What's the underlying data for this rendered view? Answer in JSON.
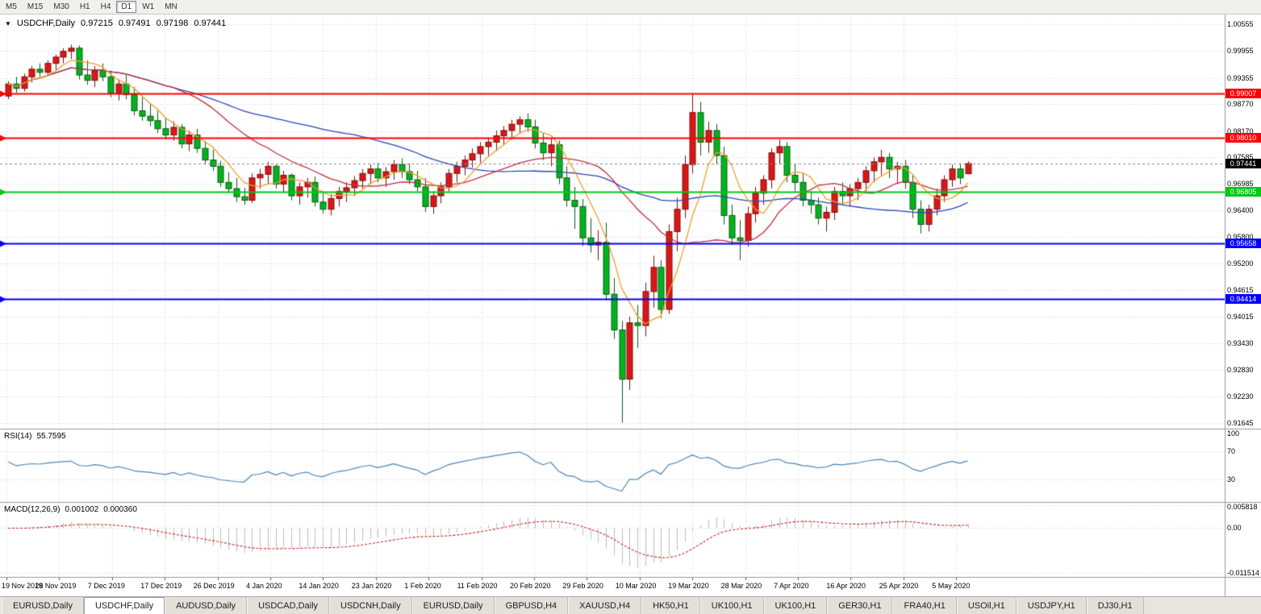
{
  "toolbar": {
    "buttons": [
      "M5",
      "M15",
      "M30",
      "H1",
      "H4",
      "D1",
      "W1",
      "MN"
    ],
    "active_index": 5
  },
  "icons": {
    "symbol_dropdown": "▼"
  },
  "chart": {
    "symbol_header": "USDCHF,Daily",
    "ohlc": {
      "open": "0.97215",
      "high": "0.97491",
      "low": "0.97198",
      "close": "0.97441"
    },
    "price_axis_labels": [
      "1.00555",
      "0.99955",
      "0.99355",
      "0.98770",
      "0.98170",
      "0.97585",
      "0.96985",
      "0.96400",
      "0.95800",
      "0.95200",
      "0.94615",
      "0.94015",
      "0.93430",
      "0.92830",
      "0.92230",
      "0.91645"
    ],
    "time_axis_labels": [
      "19 Nov 2019",
      "28 Nov 2019",
      "7 Dec 2019",
      "17 Dec 2019",
      "26 Dec 2019",
      "4 Jan 2020",
      "14 Jan 2020",
      "23 Jan 2020",
      "1 Feb 2020",
      "11 Feb 2020",
      "20 Feb 2020",
      "29 Feb 2020",
      "10 Mar 2020",
      "19 Mar 2020",
      "28 Mar 2020",
      "7 Apr 2020",
      "16 Apr 2020",
      "25 Apr 2020",
      "5 May 2020"
    ],
    "hlines": [
      {
        "label": "0.99007",
        "price": 0.99007,
        "color": "#ff0000",
        "width": 2
      },
      {
        "label": "0.98010",
        "price": 0.9801,
        "color": "#ff0000",
        "width": 2
      },
      {
        "label": "0.96805",
        "price": 0.96805,
        "color": "#00c814",
        "width": 2
      },
      {
        "label": "0.95658",
        "price": 0.95658,
        "color": "#0000ff",
        "width": 2
      },
      {
        "label": "0.94414",
        "price": 0.94414,
        "color": "#0000ff",
        "width": 2
      }
    ],
    "current_price": {
      "label": "0.97441",
      "price": 0.97441
    },
    "colors": {
      "bull": "#dc1616",
      "bear": "#00b41e",
      "bull_wick": "#7a1010",
      "bear_wick": "#0e5c14",
      "grid": "#d6d6d6",
      "ma_fast": "#f0a028",
      "ma_mid": "#c23040",
      "ma_slow": "#2846b4",
      "rsi_line": "#4a86b8",
      "macd_hist": "#bdbdbd",
      "macd_signal": "#cc2222",
      "current_badge": "#000000"
    }
  },
  "rsi": {
    "label": "RSI(14)",
    "value": "55.7595",
    "axis_labels": [
      {
        "label": "100",
        "v": 100
      },
      {
        "label": "70",
        "v": 70
      },
      {
        "label": "30",
        "v": 30
      }
    ]
  },
  "macd": {
    "label": "MACD(12,26,9)",
    "value_main": "0.001002",
    "value_signal": "0.000360",
    "axis_labels": [
      {
        "label": "0.005818",
        "v": 0.005818
      },
      {
        "label": "0.00",
        "v": 0
      },
      {
        "label": "-0.011514",
        "v": -0.011514
      }
    ]
  },
  "tabs": {
    "active_index": 1,
    "items": [
      "EURUSD,Daily",
      "USDCHF,Daily",
      "AUDUSD,Daily",
      "USDCAD,Daily",
      "USDCNH,Daily",
      "EURUSD,Daily",
      "GBPUSD,H4",
      "XAUUSD,H4",
      "HK50,H1",
      "UK100,H1",
      "UK100,H1",
      "GER30,H1",
      "FRA40,H1",
      "USOil,H1",
      "USDJPY,H1",
      "DJ30,H1"
    ]
  },
  "chart_data": {
    "type": "candlestick",
    "symbol": "USDCHF",
    "timeframe": "Daily",
    "x_labels": [
      "19 Nov 2019",
      "28 Nov 2019",
      "7 Dec 2019",
      "17 Dec 2019",
      "26 Dec 2019",
      "4 Jan 2020",
      "14 Jan 2020",
      "23 Jan 2020",
      "1 Feb 2020",
      "11 Feb 2020",
      "20 Feb 2020",
      "29 Feb 2020",
      "10 Mar 2020",
      "19 Mar 2020",
      "28 Mar 2020",
      "7 Apr 2020",
      "16 Apr 2020",
      "25 Apr 2020",
      "5 May 2020"
    ],
    "y_range": [
      0.9155,
      1.0077
    ],
    "note_colors": "red candles = bullish, green candles = bearish",
    "indicators": [
      {
        "name": "RSI",
        "params": "14",
        "displayed_value": 55.7595,
        "levels": [
          100,
          70,
          30
        ]
      },
      {
        "name": "MACD",
        "params": "12,26,9",
        "displayed_values": [
          0.001002,
          0.00036
        ],
        "scale": [
          0.005818,
          0.0,
          -0.011514
        ]
      }
    ],
    "candles": [
      [
        0.9895,
        0.9928,
        0.9888,
        0.9922
      ],
      [
        0.9922,
        0.9938,
        0.9902,
        0.9912
      ],
      [
        0.9912,
        0.9945,
        0.9905,
        0.9938
      ],
      [
        0.9938,
        0.9962,
        0.9925,
        0.9955
      ],
      [
        0.9955,
        0.9968,
        0.9938,
        0.9948
      ],
      [
        0.9948,
        0.9975,
        0.994,
        0.9968
      ],
      [
        0.9968,
        0.9988,
        0.9952,
        0.9982
      ],
      [
        0.9982,
        1.0002,
        0.9968,
        0.9995
      ],
      [
        0.9995,
        1.001,
        0.9978,
        1.0002
      ],
      [
        1.0002,
        1.0008,
        0.9932,
        0.9942
      ],
      [
        0.9942,
        0.9975,
        0.992,
        0.993
      ],
      [
        0.993,
        0.9962,
        0.9915,
        0.9952
      ],
      [
        0.9952,
        0.9968,
        0.9928,
        0.9938
      ],
      [
        0.9938,
        0.9952,
        0.9892,
        0.9902
      ],
      [
        0.9902,
        0.9932,
        0.9885,
        0.9922
      ],
      [
        0.9922,
        0.9942,
        0.9888,
        0.9898
      ],
      [
        0.9898,
        0.9915,
        0.9852,
        0.9862
      ],
      [
        0.9862,
        0.9892,
        0.984,
        0.985
      ],
      [
        0.985,
        0.9878,
        0.9828,
        0.984
      ],
      [
        0.984,
        0.9862,
        0.9812,
        0.9822
      ],
      [
        0.9822,
        0.9845,
        0.9798,
        0.9808
      ],
      [
        0.9808,
        0.9838,
        0.9795,
        0.9825
      ],
      [
        0.9825,
        0.9832,
        0.9778,
        0.9788
      ],
      [
        0.9788,
        0.9818,
        0.9772,
        0.9808
      ],
      [
        0.9808,
        0.9822,
        0.9768,
        0.9778
      ],
      [
        0.9778,
        0.9795,
        0.9742,
        0.9752
      ],
      [
        0.9752,
        0.9775,
        0.9728,
        0.9738
      ],
      [
        0.9738,
        0.975,
        0.9692,
        0.9702
      ],
      [
        0.9702,
        0.9725,
        0.9678,
        0.9688
      ],
      [
        0.9688,
        0.9712,
        0.9658,
        0.967
      ],
      [
        0.967,
        0.969,
        0.9652,
        0.9662
      ],
      [
        0.9662,
        0.9722,
        0.9656,
        0.9712
      ],
      [
        0.9712,
        0.9732,
        0.9688,
        0.972
      ],
      [
        0.972,
        0.9748,
        0.9698,
        0.9738
      ],
      [
        0.9738,
        0.9742,
        0.9688,
        0.9698
      ],
      [
        0.9698,
        0.9728,
        0.9678,
        0.9718
      ],
      [
        0.9718,
        0.9722,
        0.9662,
        0.9672
      ],
      [
        0.9672,
        0.9702,
        0.9652,
        0.9692
      ],
      [
        0.9692,
        0.9712,
        0.9668,
        0.9702
      ],
      [
        0.9702,
        0.9715,
        0.9648,
        0.9658
      ],
      [
        0.9658,
        0.9682,
        0.9632,
        0.9642
      ],
      [
        0.9642,
        0.9676,
        0.9628,
        0.9666
      ],
      [
        0.9666,
        0.9692,
        0.9648,
        0.9682
      ],
      [
        0.9682,
        0.9702,
        0.9658,
        0.969
      ],
      [
        0.969,
        0.9716,
        0.9672,
        0.9706
      ],
      [
        0.9706,
        0.9732,
        0.9688,
        0.9722
      ],
      [
        0.9722,
        0.9742,
        0.9698,
        0.9732
      ],
      [
        0.9732,
        0.9746,
        0.9702,
        0.9712
      ],
      [
        0.9712,
        0.9736,
        0.9692,
        0.9726
      ],
      [
        0.9726,
        0.9752,
        0.9708,
        0.9742
      ],
      [
        0.9742,
        0.9756,
        0.9712,
        0.9726
      ],
      [
        0.9726,
        0.9744,
        0.9698,
        0.9708
      ],
      [
        0.9708,
        0.9728,
        0.9682,
        0.9692
      ],
      [
        0.9692,
        0.9712,
        0.9636,
        0.9648
      ],
      [
        0.9648,
        0.9682,
        0.9632,
        0.9672
      ],
      [
        0.9672,
        0.9702,
        0.9655,
        0.9692
      ],
      [
        0.9692,
        0.9732,
        0.9682,
        0.9722
      ],
      [
        0.9722,
        0.9748,
        0.9702,
        0.9738
      ],
      [
        0.9738,
        0.9762,
        0.9718,
        0.9752
      ],
      [
        0.9752,
        0.9778,
        0.9735,
        0.9766
      ],
      [
        0.9766,
        0.9792,
        0.9746,
        0.9782
      ],
      [
        0.9782,
        0.9802,
        0.9762,
        0.9792
      ],
      [
        0.9792,
        0.9818,
        0.9772,
        0.9806
      ],
      [
        0.9806,
        0.9828,
        0.9786,
        0.9818
      ],
      [
        0.9818,
        0.9842,
        0.9798,
        0.9832
      ],
      [
        0.9832,
        0.985,
        0.9812,
        0.9842
      ],
      [
        0.9842,
        0.9856,
        0.9815,
        0.9826
      ],
      [
        0.9826,
        0.9842,
        0.9778,
        0.979
      ],
      [
        0.979,
        0.9812,
        0.9752,
        0.9768
      ],
      [
        0.9768,
        0.98,
        0.9738,
        0.9786
      ],
      [
        0.9786,
        0.9796,
        0.9698,
        0.9712
      ],
      [
        0.9712,
        0.9738,
        0.9648,
        0.9662
      ],
      [
        0.9662,
        0.9692,
        0.9598,
        0.9648
      ],
      [
        0.9648,
        0.9665,
        0.956,
        0.9578
      ],
      [
        0.9578,
        0.9622,
        0.9545,
        0.9562
      ],
      [
        0.9562,
        0.9595,
        0.9528,
        0.9568
      ],
      [
        0.9568,
        0.9612,
        0.9438,
        0.9452
      ],
      [
        0.9452,
        0.9488,
        0.9352,
        0.9372
      ],
      [
        0.9372,
        0.9392,
        0.9165,
        0.9262
      ],
      [
        0.9262,
        0.9402,
        0.9238,
        0.9388
      ],
      [
        0.9388,
        0.9428,
        0.9332,
        0.9382
      ],
      [
        0.9382,
        0.9478,
        0.9358,
        0.9458
      ],
      [
        0.9458,
        0.9538,
        0.9422,
        0.9512
      ],
      [
        0.9512,
        0.9528,
        0.9398,
        0.9418
      ],
      [
        0.9418,
        0.9608,
        0.9408,
        0.9592
      ],
      [
        0.9592,
        0.9668,
        0.9548,
        0.9642
      ],
      [
        0.9642,
        0.9762,
        0.9622,
        0.9742
      ],
      [
        0.9742,
        0.9901,
        0.9722,
        0.9858
      ],
      [
        0.9858,
        0.9882,
        0.9762,
        0.9792
      ],
      [
        0.9792,
        0.9838,
        0.9768,
        0.9818
      ],
      [
        0.9818,
        0.9832,
        0.9742,
        0.9762
      ],
      [
        0.9762,
        0.9782,
        0.9608,
        0.9628
      ],
      [
        0.9628,
        0.9652,
        0.9562,
        0.9578
      ],
      [
        0.9578,
        0.9618,
        0.9528,
        0.9572
      ],
      [
        0.9572,
        0.9648,
        0.9558,
        0.9632
      ],
      [
        0.9632,
        0.9692,
        0.9612,
        0.9678
      ],
      [
        0.9678,
        0.9718,
        0.9652,
        0.9708
      ],
      [
        0.9708,
        0.9778,
        0.9688,
        0.9768
      ],
      [
        0.9768,
        0.9798,
        0.9742,
        0.9782
      ],
      [
        0.9782,
        0.9792,
        0.9702,
        0.9718
      ],
      [
        0.9718,
        0.9742,
        0.9682,
        0.9702
      ],
      [
        0.9702,
        0.9722,
        0.9648,
        0.9662
      ],
      [
        0.9662,
        0.9682,
        0.9632,
        0.9652
      ],
      [
        0.9652,
        0.9668,
        0.9608,
        0.9622
      ],
      [
        0.9622,
        0.9648,
        0.9592,
        0.9635
      ],
      [
        0.9635,
        0.9692,
        0.9618,
        0.9682
      ],
      [
        0.9682,
        0.9702,
        0.9652,
        0.9672
      ],
      [
        0.9672,
        0.9698,
        0.9648,
        0.9688
      ],
      [
        0.9688,
        0.9712,
        0.9662,
        0.9702
      ],
      [
        0.9702,
        0.9738,
        0.9682,
        0.9728
      ],
      [
        0.9728,
        0.9758,
        0.9702,
        0.9748
      ],
      [
        0.9748,
        0.9775,
        0.9718,
        0.9758
      ],
      [
        0.9758,
        0.9768,
        0.9712,
        0.9732
      ],
      [
        0.9732,
        0.9748,
        0.9698,
        0.9738
      ],
      [
        0.9738,
        0.9752,
        0.9688,
        0.9702
      ],
      [
        0.9702,
        0.9718,
        0.9622,
        0.9642
      ],
      [
        0.9642,
        0.9662,
        0.9588,
        0.9608
      ],
      [
        0.9608,
        0.9652,
        0.9592,
        0.9642
      ],
      [
        0.9642,
        0.9688,
        0.9628,
        0.9672
      ],
      [
        0.9672,
        0.9718,
        0.9658,
        0.9708
      ],
      [
        0.9708,
        0.9742,
        0.9692,
        0.9732
      ],
      [
        0.9732,
        0.9745,
        0.9698,
        0.9712
      ],
      [
        0.97215,
        0.97491,
        0.97198,
        0.97441
      ]
    ]
  }
}
